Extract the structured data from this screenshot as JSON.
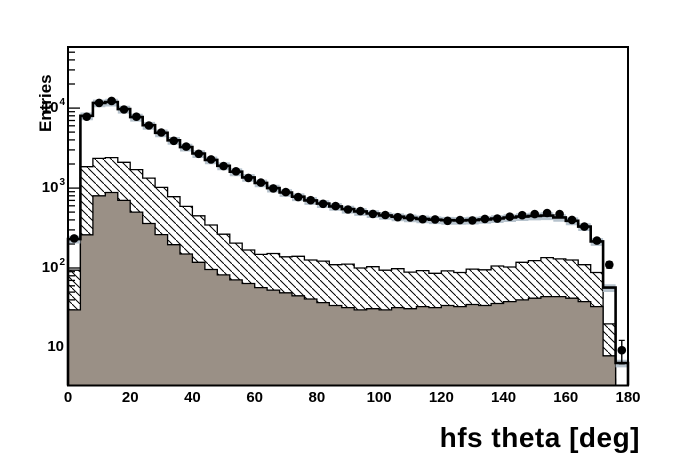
{
  "figure": {
    "ylabel": "Entries",
    "xlabel": "hfs theta [deg]"
  },
  "axes": {
    "x_tick_values": [
      0,
      20,
      40,
      60,
      80,
      100,
      120,
      140,
      160,
      180
    ],
    "y_ticks": [
      {
        "base": "10",
        "exp": "",
        "value": 10
      },
      {
        "base": "10",
        "exp": "2",
        "value": 100
      },
      {
        "base": "10",
        "exp": "3",
        "value": 1000
      },
      {
        "base": "10",
        "exp": "4",
        "value": 10000
      }
    ]
  },
  "chart_data": {
    "type": "area",
    "subtype": "stepped-histogram-log-y",
    "title": "",
    "xlabel": "hfs theta [deg]",
    "ylabel": "Entries",
    "xlim": [
      0,
      180
    ],
    "ylim": [
      3.4,
      58000
    ],
    "y_scale": "log",
    "bins": 45,
    "bin_width": 4,
    "grid": false,
    "legend": "none",
    "colors": {
      "line": "#000000",
      "points": "#000000",
      "band": "#b7c3cd",
      "solid_fill": "#9a9086",
      "hatch_lines": "#000000",
      "frame": "#000000"
    },
    "series": [
      {
        "name": "data-points",
        "style": "filled-circle-markers-with-errors",
        "values": [
          235,
          7800,
          11600,
          12300,
          9600,
          7800,
          6050,
          4950,
          3900,
          3300,
          2680,
          2280,
          1880,
          1620,
          1340,
          1170,
          990,
          890,
          770,
          705,
          635,
          595,
          540,
          515,
          475,
          460,
          432,
          428,
          408,
          405,
          390,
          398,
          394,
          412,
          415,
          438,
          458,
          472,
          487,
          473,
          400,
          330,
          220,
          110,
          9.4
        ]
      },
      {
        "name": "total-histogram",
        "style": "thick-step-line",
        "values": [
          230,
          8000,
          11600,
          11900,
          9700,
          7700,
          6100,
          4900,
          3950,
          3250,
          2700,
          2250,
          1900,
          1600,
          1360,
          1160,
          1000,
          880,
          780,
          700,
          640,
          590,
          545,
          510,
          480,
          455,
          438,
          424,
          412,
          402,
          396,
          394,
          398,
          406,
          416,
          428,
          440,
          448,
          452,
          430,
          390,
          330,
          215,
          57,
          6.5
        ]
      },
      {
        "name": "uncertainty-band",
        "style": "band-behind-line",
        "rel_up": 1.1,
        "rel_down": 0.88,
        "values": [
          230,
          8000,
          11600,
          11900,
          9700,
          7700,
          6100,
          4900,
          3950,
          3250,
          2700,
          2250,
          1900,
          1600,
          1360,
          1160,
          1000,
          880,
          780,
          700,
          640,
          590,
          545,
          510,
          480,
          455,
          438,
          424,
          412,
          402,
          396,
          394,
          398,
          406,
          416,
          428,
          440,
          448,
          452,
          430,
          390,
          330,
          215,
          57,
          6.5
        ]
      },
      {
        "name": "hatched-background",
        "style": "diagonal-hatch-fill",
        "values": [
          94,
          1850,
          2350,
          2400,
          2100,
          1700,
          1330,
          1020,
          780,
          590,
          450,
          345,
          265,
          205,
          168,
          148,
          152,
          138,
          140,
          126,
          122,
          110,
          112,
          100,
          104,
          94,
          98,
          89,
          93,
          86,
          92,
          88,
          97,
          95,
          106,
          103,
          118,
          124,
          135,
          130,
          126,
          110,
          88,
          20,
          0.9
        ]
      },
      {
        "name": "solid-gray-background",
        "style": "solid-fill",
        "values": [
          30,
          260,
          800,
          880,
          700,
          500,
          360,
          262,
          196,
          150,
          118,
          96,
          82,
          71,
          64,
          57,
          53,
          49,
          45,
          41,
          37,
          34,
          32,
          30,
          31,
          30,
          32,
          31,
          33,
          32,
          34,
          33,
          35,
          34,
          36,
          38,
          40,
          42,
          44,
          44,
          42,
          38,
          33,
          8,
          0.5
        ]
      }
    ]
  }
}
